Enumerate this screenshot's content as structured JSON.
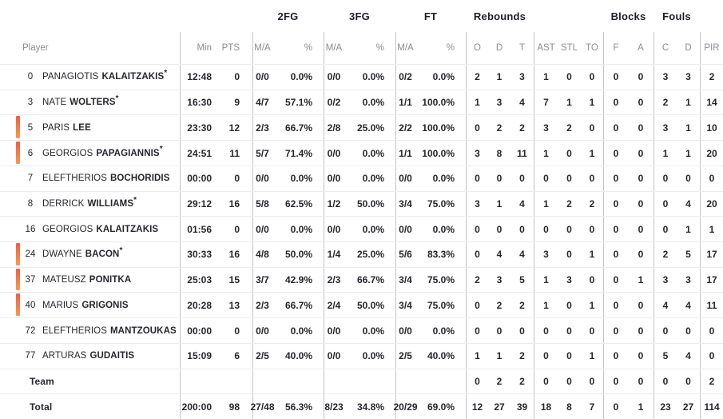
{
  "colors": {
    "on_court_bar_top": "#ee5f41",
    "on_court_bar_bottom": "#f79a50",
    "divider": "#c4c4ca",
    "row_line": "#ececef",
    "header_text": "#1d1d2e",
    "subheader_text": "#8c8c94",
    "text": "#26262e"
  },
  "table": {
    "group_headers": [
      "2FG",
      "3FG",
      "FT",
      "Rebounds",
      "Blocks",
      "Fouls"
    ],
    "sub_headers": {
      "player": "Player",
      "min": "Min",
      "pts": "PTS",
      "ma": "M/A",
      "pct": "%",
      "o": "O",
      "d": "D",
      "t": "T",
      "ast": "AST",
      "stl": "STL",
      "to": "TO",
      "f": "F",
      "a": "A",
      "c": "C",
      "dd": "D",
      "pir": "PIR"
    },
    "rows": [
      {
        "type": "player",
        "number": "0",
        "first": "PANAGIOTIS",
        "last": "KALAITZAKIS",
        "starter": true,
        "on_court": false,
        "min": "12:48",
        "pts": "0",
        "fg2ma": "0/0",
        "fg2pct": "0.0%",
        "fg3ma": "0/0",
        "fg3pct": "0.0%",
        "ftma": "0/2",
        "ftpct": "0.0%",
        "o": "2",
        "d": "1",
        "t": "3",
        "ast": "1",
        "stl": "0",
        "to": "0",
        "f": "0",
        "a": "0",
        "c": "3",
        "dd": "3",
        "pir": "2"
      },
      {
        "type": "player",
        "number": "3",
        "first": "NATE",
        "last": "WOLTERS",
        "starter": true,
        "on_court": false,
        "min": "16:30",
        "pts": "9",
        "fg2ma": "4/7",
        "fg2pct": "57.1%",
        "fg3ma": "0/2",
        "fg3pct": "0.0%",
        "ftma": "1/1",
        "ftpct": "100.0%",
        "o": "1",
        "d": "3",
        "t": "4",
        "ast": "7",
        "stl": "1",
        "to": "1",
        "f": "0",
        "a": "0",
        "c": "2",
        "dd": "1",
        "pir": "14"
      },
      {
        "type": "player",
        "number": "5",
        "first": "PARIS",
        "last": "LEE",
        "starter": false,
        "on_court": true,
        "min": "23:30",
        "pts": "12",
        "fg2ma": "2/3",
        "fg2pct": "66.7%",
        "fg3ma": "2/8",
        "fg3pct": "25.0%",
        "ftma": "2/2",
        "ftpct": "100.0%",
        "o": "0",
        "d": "2",
        "t": "2",
        "ast": "3",
        "stl": "2",
        "to": "0",
        "f": "0",
        "a": "0",
        "c": "3",
        "dd": "1",
        "pir": "10"
      },
      {
        "type": "player",
        "number": "6",
        "first": "GEORGIOS",
        "last": "PAPAGIANNIS",
        "starter": true,
        "on_court": true,
        "min": "24:51",
        "pts": "11",
        "fg2ma": "5/7",
        "fg2pct": "71.4%",
        "fg3ma": "0/0",
        "fg3pct": "0.0%",
        "ftma": "1/1",
        "ftpct": "100.0%",
        "o": "3",
        "d": "8",
        "t": "11",
        "ast": "1",
        "stl": "0",
        "to": "1",
        "f": "0",
        "a": "0",
        "c": "1",
        "dd": "1",
        "pir": "20"
      },
      {
        "type": "player",
        "number": "7",
        "first": "ELEFTHERIOS",
        "last": "BOCHORIDIS",
        "starter": false,
        "on_court": false,
        "min": "00:00",
        "pts": "0",
        "fg2ma": "0/0",
        "fg2pct": "0.0%",
        "fg3ma": "0/0",
        "fg3pct": "0.0%",
        "ftma": "0/0",
        "ftpct": "0.0%",
        "o": "0",
        "d": "0",
        "t": "0",
        "ast": "0",
        "stl": "0",
        "to": "0",
        "f": "0",
        "a": "0",
        "c": "0",
        "dd": "0",
        "pir": "0"
      },
      {
        "type": "player",
        "number": "8",
        "first": "DERRICK",
        "last": "WILLIAMS",
        "starter": true,
        "on_court": false,
        "min": "29:12",
        "pts": "16",
        "fg2ma": "5/8",
        "fg2pct": "62.5%",
        "fg3ma": "1/2",
        "fg3pct": "50.0%",
        "ftma": "3/4",
        "ftpct": "75.0%",
        "o": "3",
        "d": "1",
        "t": "4",
        "ast": "1",
        "stl": "2",
        "to": "2",
        "f": "0",
        "a": "0",
        "c": "0",
        "dd": "4",
        "pir": "20"
      },
      {
        "type": "player",
        "number": "16",
        "first": "GEORGIOS",
        "last": "KALAITZAKIS",
        "starter": false,
        "on_court": false,
        "min": "01:56",
        "pts": "0",
        "fg2ma": "0/0",
        "fg2pct": "0.0%",
        "fg3ma": "0/0",
        "fg3pct": "0.0%",
        "ftma": "0/0",
        "ftpct": "0.0%",
        "o": "0",
        "d": "0",
        "t": "0",
        "ast": "0",
        "stl": "0",
        "to": "0",
        "f": "0",
        "a": "0",
        "c": "0",
        "dd": "1",
        "pir": "1"
      },
      {
        "type": "player",
        "number": "24",
        "first": "DWAYNE",
        "last": "BACON",
        "starter": true,
        "on_court": true,
        "min": "30:33",
        "pts": "16",
        "fg2ma": "4/8",
        "fg2pct": "50.0%",
        "fg3ma": "1/4",
        "fg3pct": "25.0%",
        "ftma": "5/6",
        "ftpct": "83.3%",
        "o": "0",
        "d": "4",
        "t": "4",
        "ast": "3",
        "stl": "0",
        "to": "1",
        "f": "0",
        "a": "0",
        "c": "2",
        "dd": "5",
        "pir": "17"
      },
      {
        "type": "player",
        "number": "37",
        "first": "MATEUSZ",
        "last": "PONITKA",
        "starter": false,
        "on_court": true,
        "min": "25:03",
        "pts": "15",
        "fg2ma": "3/7",
        "fg2pct": "42.9%",
        "fg3ma": "2/3",
        "fg3pct": "66.7%",
        "ftma": "3/4",
        "ftpct": "75.0%",
        "o": "2",
        "d": "3",
        "t": "5",
        "ast": "1",
        "stl": "3",
        "to": "0",
        "f": "0",
        "a": "1",
        "c": "3",
        "dd": "3",
        "pir": "17"
      },
      {
        "type": "player",
        "number": "40",
        "first": "MARIUS",
        "last": "GRIGONIS",
        "starter": false,
        "on_court": true,
        "min": "20:28",
        "pts": "13",
        "fg2ma": "2/3",
        "fg2pct": "66.7%",
        "fg3ma": "2/4",
        "fg3pct": "50.0%",
        "ftma": "3/4",
        "ftpct": "75.0%",
        "o": "0",
        "d": "2",
        "t": "2",
        "ast": "1",
        "stl": "0",
        "to": "1",
        "f": "0",
        "a": "0",
        "c": "4",
        "dd": "4",
        "pir": "11"
      },
      {
        "type": "player",
        "number": "72",
        "first": "ELEFTHERIOS",
        "last": "MANTZOUKAS",
        "starter": false,
        "on_court": false,
        "min": "00:00",
        "pts": "0",
        "fg2ma": "0/0",
        "fg2pct": "0.0%",
        "fg3ma": "0/0",
        "fg3pct": "0.0%",
        "ftma": "0/0",
        "ftpct": "0.0%",
        "o": "0",
        "d": "0",
        "t": "0",
        "ast": "0",
        "stl": "0",
        "to": "0",
        "f": "0",
        "a": "0",
        "c": "0",
        "dd": "0",
        "pir": "0"
      },
      {
        "type": "player",
        "number": "77",
        "first": "ARTURAS",
        "last": "GUDAITIS",
        "starter": false,
        "on_court": false,
        "min": "15:09",
        "pts": "6",
        "fg2ma": "2/5",
        "fg2pct": "40.0%",
        "fg3ma": "0/0",
        "fg3pct": "0.0%",
        "ftma": "2/5",
        "ftpct": "40.0%",
        "o": "1",
        "d": "1",
        "t": "2",
        "ast": "0",
        "stl": "0",
        "to": "1",
        "f": "0",
        "a": "0",
        "c": "5",
        "dd": "4",
        "pir": "0"
      },
      {
        "type": "team",
        "label": "Team",
        "min": "",
        "pts": "",
        "fg2ma": "",
        "fg2pct": "",
        "fg3ma": "",
        "fg3pct": "",
        "ftma": "",
        "ftpct": "",
        "o": "0",
        "d": "2",
        "t": "2",
        "ast": "0",
        "stl": "0",
        "to": "0",
        "f": "0",
        "a": "0",
        "c": "0",
        "dd": "0",
        "pir": "2"
      },
      {
        "type": "total",
        "label": "Total",
        "min": "200:00",
        "pts": "98",
        "fg2ma": "27/48",
        "fg2pct": "56.3%",
        "fg3ma": "8/23",
        "fg3pct": "34.8%",
        "ftma": "20/29",
        "ftpct": "69.0%",
        "o": "12",
        "d": "27",
        "t": "39",
        "ast": "18",
        "stl": "8",
        "to": "7",
        "f": "0",
        "a": "1",
        "c": "23",
        "dd": "27",
        "pir": "114"
      }
    ]
  }
}
